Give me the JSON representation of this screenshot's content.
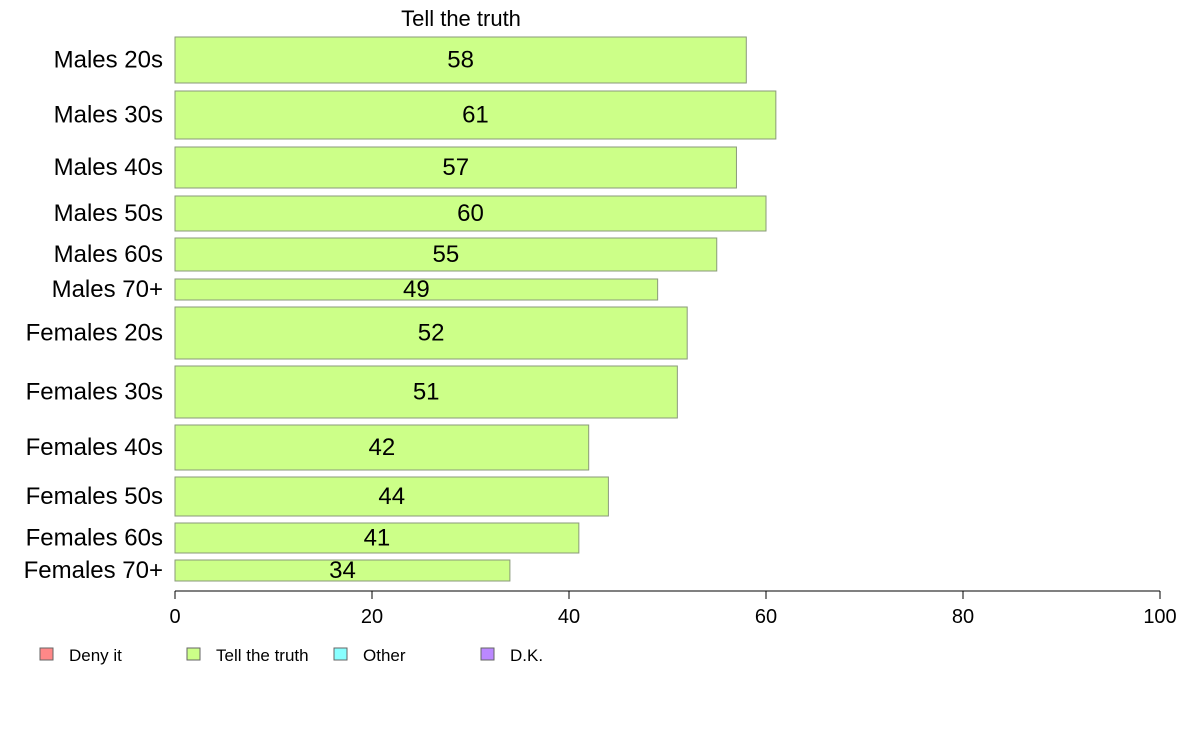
{
  "chart_data": {
    "type": "bar",
    "orientation": "horizontal",
    "title": "Tell the truth",
    "categories": [
      "Males 20s",
      "Males 30s",
      "Males 40s",
      "Males 50s",
      "Males 60s",
      "Males 70+",
      "Females 20s",
      "Females 30s",
      "Females 40s",
      "Females 50s",
      "Females 60s",
      "Females 70+"
    ],
    "series": [
      {
        "name": "Tell the truth",
        "color": "#ccff88",
        "values": [
          58,
          61,
          57,
          60,
          55,
          49,
          52,
          51,
          42,
          44,
          41,
          34
        ]
      }
    ],
    "xlim": [
      0,
      100
    ],
    "xticks": [
      0,
      20,
      40,
      60,
      80,
      100
    ],
    "grid": false,
    "legend": {
      "placement": "bottom-left",
      "items": [
        {
          "label": "Deny it",
          "color": "#ff8888"
        },
        {
          "label": "Tell the truth",
          "color": "#ccff88"
        },
        {
          "label": "Other",
          "color": "#88ffff"
        },
        {
          "label": "D.K.",
          "color": "#bb88ff"
        }
      ]
    }
  }
}
